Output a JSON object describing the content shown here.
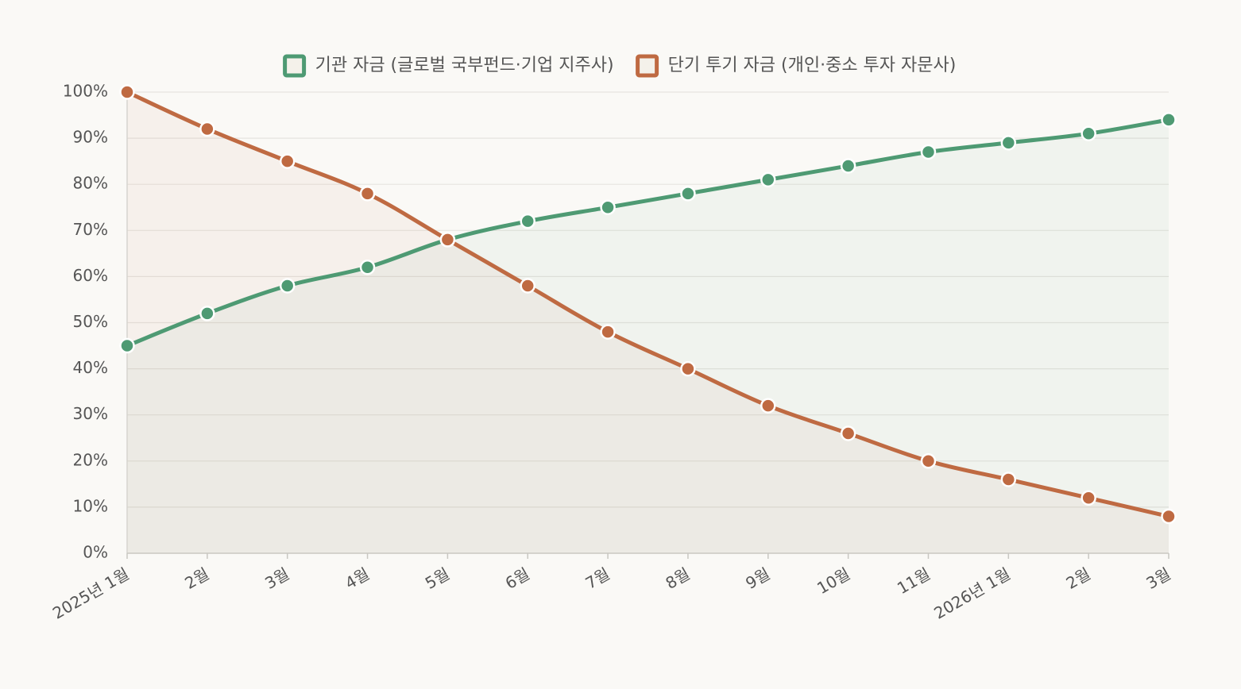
{
  "chart_data": {
    "type": "line",
    "categories": [
      "2025년 1월",
      "2월",
      "3월",
      "4월",
      "5월",
      "6월",
      "7월",
      "8월",
      "9월",
      "10월",
      "11월",
      "2026년 1월",
      "2월",
      "3월"
    ],
    "series": [
      {
        "name": "기관 자금 (글로벌 국부펀드·기업 지주사)",
        "color": "#4e9a73",
        "values": [
          45,
          52,
          58,
          62,
          68,
          72,
          75,
          78,
          81,
          84,
          87,
          89,
          91,
          94
        ]
      },
      {
        "name": "단기 투기 자금 (개인·중소 투자 자문사)",
        "color": "#bf6a42",
        "values": [
          100,
          92,
          85,
          78,
          68,
          58,
          48,
          40,
          32,
          26,
          20,
          16,
          12,
          8
        ]
      }
    ],
    "ylim": [
      0,
      100
    ],
    "yticks": [
      0,
      10,
      20,
      30,
      40,
      50,
      60,
      70,
      80,
      90,
      100
    ],
    "ytick_labels": [
      "0%",
      "10%",
      "20%",
      "30%",
      "40%",
      "50%",
      "60%",
      "70%",
      "80%",
      "90%",
      "100%"
    ],
    "grid": true,
    "legend": "top-center",
    "area_fill": true
  }
}
